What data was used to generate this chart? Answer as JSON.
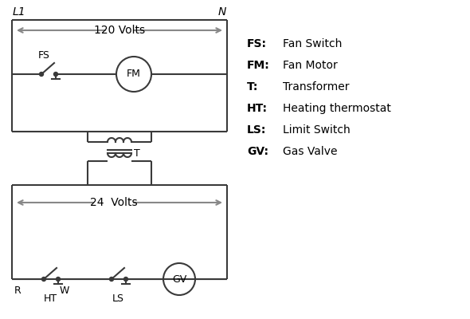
{
  "bg_color": "#ffffff",
  "line_color": "#3a3a3a",
  "arrow_color": "#888888",
  "text_color": "#000000",
  "legend_items": [
    [
      "FS:",
      "Fan Switch"
    ],
    [
      "FM:",
      "Fan Motor"
    ],
    [
      "T:",
      "Transformer"
    ],
    [
      "HT:",
      "Heating thermostat"
    ],
    [
      "LS:",
      "Limit Switch"
    ],
    [
      "GV:",
      "Gas Valve"
    ]
  ],
  "label_L1": "L1",
  "label_N": "N",
  "label_120V": "120 Volts",
  "label_24V": "24  Volts",
  "label_T": "T",
  "label_FS": "FS",
  "label_FM": "FM",
  "label_GV": "GV",
  "label_HT": "HT",
  "label_LS": "LS",
  "label_R": "R",
  "label_W": "W",
  "figsize": [
    5.9,
    4.0
  ],
  "dpi": 100
}
